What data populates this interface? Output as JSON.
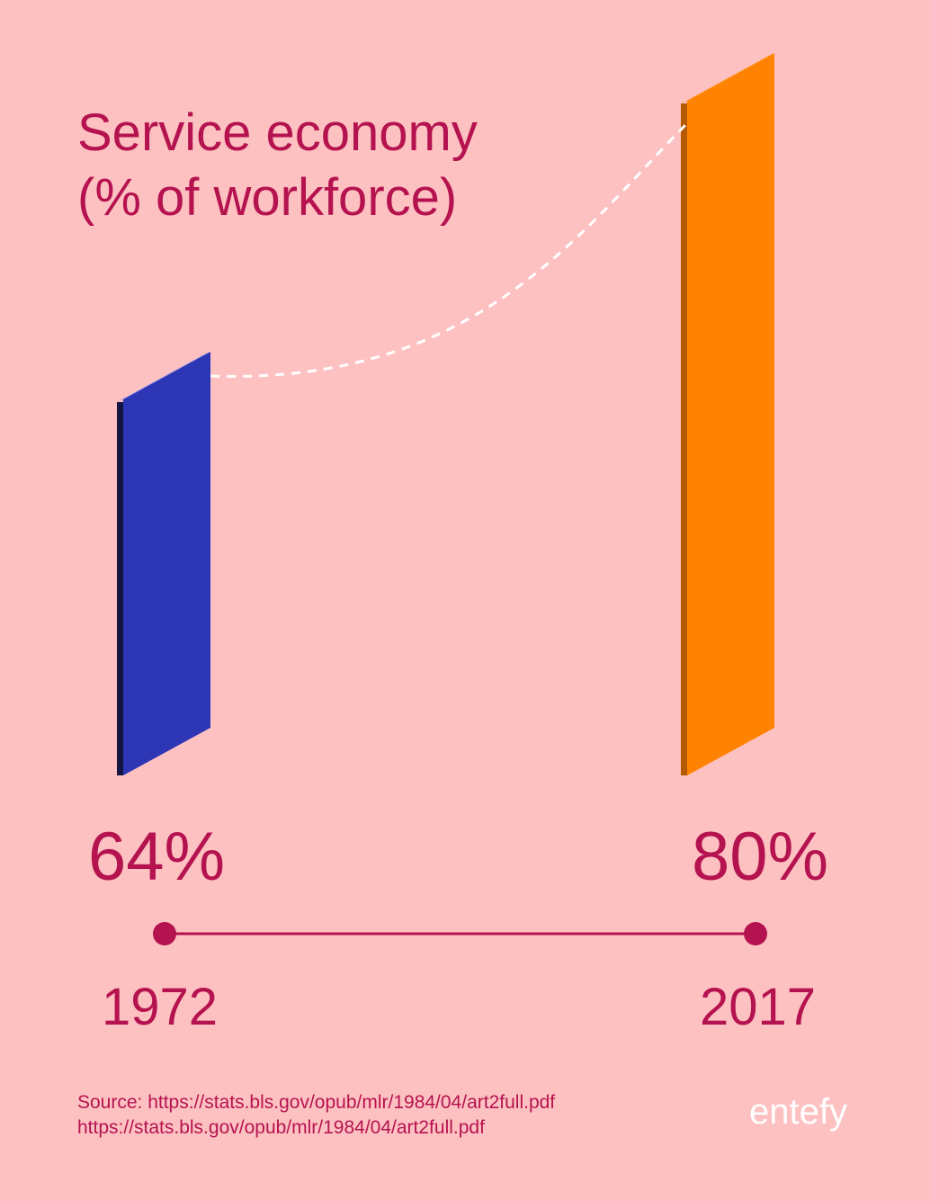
{
  "chart_data": {
    "type": "bar",
    "title_lines": [
      "Service economy",
      "(% of workforce)"
    ],
    "categories": [
      "1972",
      "2017"
    ],
    "values": [
      64,
      80
    ],
    "value_labels": [
      "64%",
      "80%"
    ],
    "colors": [
      "#2d36b4",
      "#ff8300"
    ],
    "connector": "dashed-curve",
    "timeline": true
  },
  "source_lines": [
    "Source: https://stats.bls.gov/opub/mlr/1984/04/art2full.pdf",
    "https://stats.bls.gov/opub/mlr/1984/04/art2full.pdf"
  ],
  "brand": "entefy"
}
